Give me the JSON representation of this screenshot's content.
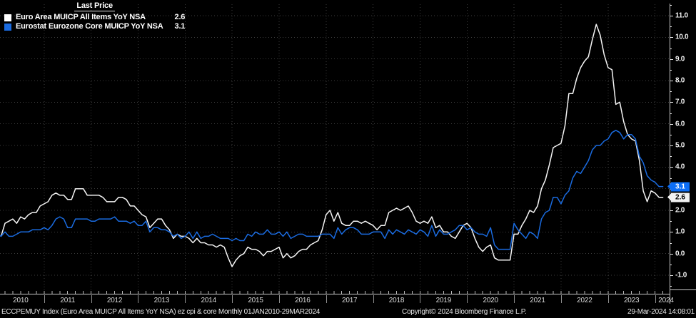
{
  "legend": {
    "title": "Last Price",
    "series": [
      {
        "label": "Euro Area MUICP All Items YoY NSA",
        "value": "2.6",
        "color": "#ffffff"
      },
      {
        "label": "Eurostat Eurozone Core MUICP YoY NSA",
        "value": "3.1",
        "color": "#1a6be0"
      }
    ]
  },
  "footer": {
    "left": "ECCPEMUY Index (Euro Area MUICP All Items YoY NSA) ez cpi & core  Monthly 01JAN2010-29MAR2024",
    "copyright": "Copyright© 2024 Bloomberg Finance L.P.",
    "datetime": "29-Mar-2024 14:08:01"
  },
  "chart_data": {
    "type": "line",
    "title": "Last Price",
    "x_start": "2010-01",
    "x_end": "2024-03",
    "frequency": "monthly",
    "x_years": [
      "2010",
      "2011",
      "2012",
      "2013",
      "2014",
      "2015",
      "2016",
      "2017",
      "2018",
      "2019",
      "2020",
      "2021",
      "2022",
      "2023",
      "2024"
    ],
    "ylim": [
      -1.9,
      11.5
    ],
    "y_major_step": 1.0,
    "y_minor_step": 0.5,
    "y_tick_labels": [
      "-1.0",
      "0.0",
      "1.0",
      "2.0",
      "3.0",
      "4.0",
      "5.0",
      "6.0",
      "7.0",
      "8.0",
      "9.0",
      "10.0",
      "11.0"
    ],
    "grid": "dotted",
    "legend_position": "top-left",
    "last_price_badges": [
      {
        "value": "3.1",
        "bg": "#0d6ef5",
        "fg": "#ffffff"
      },
      {
        "value": "2.6",
        "bg": "#f2f2f2",
        "fg": "#000000"
      }
    ],
    "series": [
      {
        "name": "Euro Area MUICP All Items YoY NSA",
        "color": "#f5f5f5",
        "last": 2.6,
        "values": [
          0.9,
          0.8,
          1.4,
          1.5,
          1.6,
          1.4,
          1.7,
          1.6,
          1.8,
          1.9,
          1.9,
          2.2,
          2.3,
          2.4,
          2.7,
          2.8,
          2.7,
          2.7,
          2.5,
          2.5,
          3.0,
          3.0,
          3.0,
          2.7,
          2.7,
          2.7,
          2.7,
          2.6,
          2.4,
          2.4,
          2.4,
          2.6,
          2.6,
          2.5,
          2.2,
          2.2,
          2.0,
          1.8,
          1.7,
          1.2,
          1.4,
          1.6,
          1.6,
          1.3,
          1.1,
          0.7,
          0.9,
          0.8,
          0.8,
          0.7,
          0.5,
          0.7,
          0.5,
          0.5,
          0.4,
          0.4,
          0.3,
          0.4,
          0.3,
          -0.2,
          -0.6,
          -0.3,
          -0.1,
          0.0,
          0.3,
          0.2,
          0.2,
          0.1,
          -0.1,
          0.1,
          0.1,
          0.2,
          0.3,
          -0.2,
          0.0,
          -0.2,
          -0.1,
          0.1,
          0.2,
          0.2,
          0.4,
          0.5,
          0.6,
          1.1,
          1.8,
          2.0,
          1.5,
          1.9,
          1.4,
          1.3,
          1.3,
          1.5,
          1.5,
          1.4,
          1.5,
          1.4,
          1.3,
          1.1,
          1.3,
          1.3,
          1.9,
          2.0,
          2.1,
          2.0,
          2.1,
          2.2,
          1.9,
          1.5,
          1.4,
          1.5,
          1.4,
          1.7,
          1.2,
          1.3,
          1.0,
          1.0,
          0.8,
          0.7,
          1.0,
          1.3,
          1.4,
          1.2,
          0.7,
          0.3,
          0.1,
          0.3,
          0.4,
          -0.2,
          -0.3,
          -0.3,
          -0.3,
          -0.3,
          0.9,
          0.9,
          1.3,
          1.6,
          2.0,
          1.9,
          2.2,
          3.0,
          3.4,
          4.1,
          4.9,
          5.0,
          5.1,
          5.9,
          7.4,
          7.4,
          8.1,
          8.6,
          8.9,
          9.1,
          9.9,
          10.6,
          10.1,
          9.2,
          8.6,
          8.5,
          6.9,
          7.0,
          6.1,
          5.5,
          5.3,
          5.2,
          4.3,
          2.9,
          2.4,
          2.9,
          2.8,
          2.6,
          2.6
        ]
      },
      {
        "name": "Eurostat Eurozone Core MUICP YoY NSA",
        "color": "#1a6be0",
        "last": 3.1,
        "values": [
          0.9,
          0.8,
          1.0,
          0.8,
          0.8,
          0.9,
          1.0,
          1.0,
          1.0,
          1.1,
          1.1,
          1.1,
          1.2,
          1.1,
          1.3,
          1.6,
          1.7,
          1.6,
          1.2,
          1.2,
          1.6,
          1.6,
          1.6,
          1.6,
          1.5,
          1.5,
          1.6,
          1.6,
          1.6,
          1.6,
          1.7,
          1.5,
          1.5,
          1.5,
          1.4,
          1.5,
          1.3,
          1.3,
          1.5,
          1.0,
          1.2,
          1.2,
          1.1,
          1.1,
          1.0,
          0.8,
          0.9,
          0.7,
          0.8,
          1.0,
          0.7,
          1.0,
          0.7,
          0.8,
          0.8,
          0.9,
          0.8,
          0.7,
          0.7,
          0.7,
          0.6,
          0.7,
          0.6,
          0.6,
          0.9,
          0.8,
          1.0,
          0.9,
          0.9,
          1.1,
          0.9,
          0.9,
          1.0,
          0.8,
          1.0,
          0.7,
          0.8,
          0.9,
          0.9,
          0.8,
          0.8,
          0.8,
          0.8,
          0.9,
          0.9,
          0.9,
          0.7,
          1.2,
          0.9,
          1.1,
          1.2,
          1.2,
          1.1,
          0.9,
          0.9,
          0.9,
          1.0,
          1.0,
          1.0,
          0.7,
          1.1,
          0.9,
          1.1,
          1.0,
          0.9,
          1.1,
          1.0,
          0.9,
          1.1,
          1.0,
          0.8,
          1.3,
          0.8,
          1.1,
          0.9,
          0.9,
          1.0,
          1.1,
          1.3,
          1.3,
          1.1,
          1.2,
          1.0,
          0.9,
          0.9,
          0.8,
          1.2,
          0.4,
          0.2,
          0.2,
          0.2,
          0.2,
          1.4,
          1.1,
          0.9,
          0.7,
          1.0,
          0.9,
          0.7,
          1.6,
          1.9,
          2.0,
          2.6,
          2.6,
          2.3,
          2.7,
          2.9,
          3.5,
          3.8,
          3.7,
          4.0,
          4.3,
          4.8,
          5.0,
          5.0,
          5.2,
          5.3,
          5.6,
          5.7,
          5.6,
          5.3,
          5.5,
          5.5,
          5.3,
          4.5,
          4.2,
          3.6,
          3.4,
          3.3,
          3.1,
          3.1
        ]
      }
    ]
  }
}
